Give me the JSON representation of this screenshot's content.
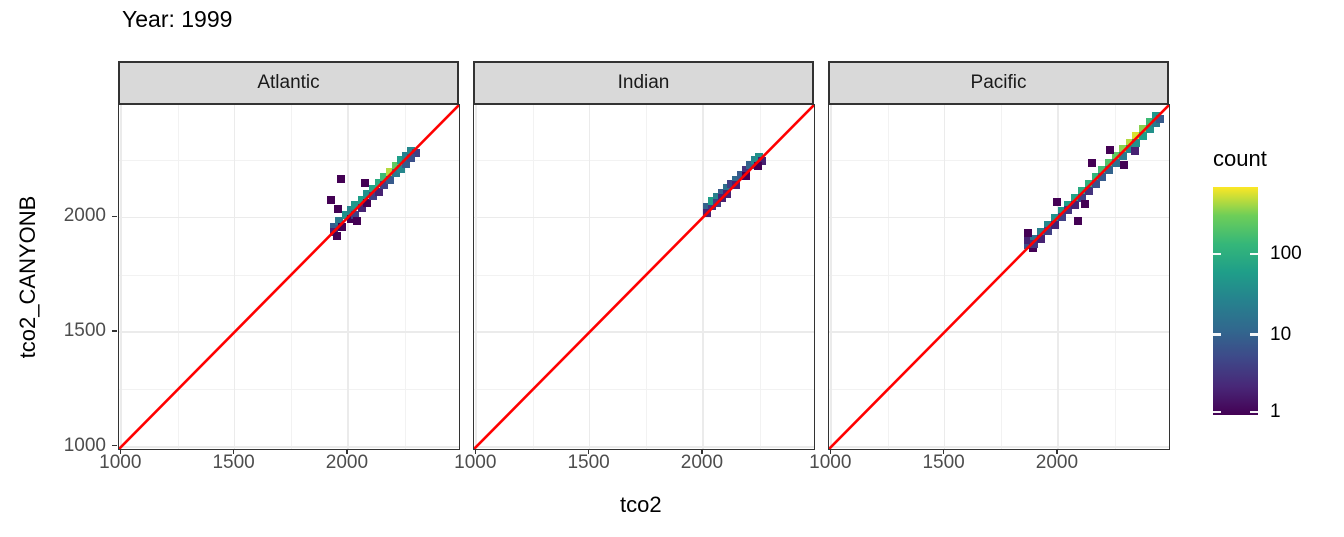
{
  "title": "Year: 1999",
  "colors": {
    "reference_line": "#FF0000",
    "strip_background": "#d9d9d9",
    "panel_border": "#333333",
    "gridline_major": "#ebebeb",
    "gridline_minor": "#f2f2f2",
    "tick_label": "#4d4d4d",
    "viridis_low": "#440154",
    "viridis_high": "#fde725"
  },
  "chart_data": {
    "type": "heatmap",
    "subtype": "geom_bin2d_faceted",
    "title": "Year: 1999",
    "xlabel": "tco2",
    "ylabel": "tco2_CANYONB",
    "facet_labels": [
      "Atlantic",
      "Indian",
      "Pacific"
    ],
    "xlim": [
      990,
      2490
    ],
    "ylim": [
      990,
      2490
    ],
    "x_ticks": [
      1000,
      1500,
      2000
    ],
    "y_ticks": [
      1000,
      1500,
      2000
    ],
    "minor_gridlines": [
      1250,
      1750,
      2250
    ],
    "grid": true,
    "bin_size_units": 35,
    "reference_line": {
      "type": "identity y=x",
      "color": "#FF0000"
    },
    "legend": {
      "title": "count",
      "position": "right",
      "scale": "log10",
      "ticks": [
        1,
        10,
        100
      ],
      "max_count": 680,
      "palette": "viridis"
    },
    "facets": [
      {
        "label": "Atlantic",
        "bins": [
          [
            1940,
            1960,
            8
          ],
          [
            1940,
            1935,
            2
          ],
          [
            1962,
            1985,
            20
          ],
          [
            1975,
            1958,
            1
          ],
          [
            1990,
            2010,
            40
          ],
          [
            2012,
            2030,
            30
          ],
          [
            2012,
            1992,
            1
          ],
          [
            2032,
            2052,
            50
          ],
          [
            2032,
            2012,
            4
          ],
          [
            2060,
            2075,
            60
          ],
          [
            2060,
            2042,
            2
          ],
          [
            2085,
            2100,
            40
          ],
          [
            2085,
            2062,
            1
          ],
          [
            2110,
            2125,
            70
          ],
          [
            2110,
            2092,
            4
          ],
          [
            2135,
            2150,
            90
          ],
          [
            2135,
            2112,
            2
          ],
          [
            2160,
            2175,
            150
          ],
          [
            2160,
            2140,
            4
          ],
          [
            2185,
            2200,
            450
          ],
          [
            2185,
            2162,
            8
          ],
          [
            2210,
            2225,
            250
          ],
          [
            2210,
            2192,
            20
          ],
          [
            2235,
            2248,
            60
          ],
          [
            2235,
            2212,
            30
          ],
          [
            2258,
            2268,
            25
          ],
          [
            2258,
            2232,
            8
          ],
          [
            2280,
            2290,
            30
          ],
          [
            2300,
            2282,
            4
          ],
          [
            2280,
            2258,
            6
          ],
          [
            1925,
            2075,
            1
          ],
          [
            1970,
            2168,
            1
          ],
          [
            2075,
            2148,
            1
          ],
          [
            1958,
            2035,
            1
          ],
          [
            2042,
            1985,
            1
          ],
          [
            1950,
            1918,
            1
          ]
        ]
      },
      {
        "label": "Indian",
        "bins": [
          [
            2020,
            2045,
            10
          ],
          [
            2042,
            2048,
            3
          ],
          [
            2020,
            2020,
            2
          ],
          [
            2040,
            2072,
            60
          ],
          [
            2062,
            2090,
            25
          ],
          [
            2062,
            2062,
            4
          ],
          [
            2085,
            2108,
            8
          ],
          [
            2085,
            2085,
            2
          ],
          [
            2108,
            2126,
            15
          ],
          [
            2108,
            2100,
            2
          ],
          [
            2126,
            2145,
            4
          ],
          [
            2148,
            2165,
            12
          ],
          [
            2148,
            2140,
            2
          ],
          [
            2168,
            2185,
            8
          ],
          [
            2188,
            2205,
            3
          ],
          [
            2188,
            2180,
            1
          ],
          [
            2208,
            2228,
            10
          ],
          [
            2228,
            2248,
            30
          ],
          [
            2248,
            2262,
            40
          ],
          [
            2262,
            2245,
            2
          ],
          [
            2245,
            2222,
            1
          ]
        ]
      },
      {
        "label": "Pacific",
        "bins": [
          [
            1868,
            1878,
            6
          ],
          [
            1868,
            1900,
            2
          ],
          [
            1888,
            1868,
            1
          ],
          [
            1896,
            1906,
            15
          ],
          [
            1896,
            1882,
            3
          ],
          [
            1926,
            1936,
            25
          ],
          [
            1926,
            1906,
            2
          ],
          [
            1956,
            1966,
            30
          ],
          [
            1956,
            1940,
            4
          ],
          [
            1986,
            1996,
            40
          ],
          [
            1986,
            1966,
            2
          ],
          [
            2016,
            2026,
            50
          ],
          [
            2016,
            2000,
            4
          ],
          [
            2046,
            2056,
            60
          ],
          [
            2046,
            2030,
            3
          ],
          [
            2076,
            2086,
            70
          ],
          [
            2076,
            2056,
            2
          ],
          [
            2106,
            2116,
            90
          ],
          [
            2106,
            2086,
            4
          ],
          [
            2136,
            2146,
            110
          ],
          [
            2136,
            2116,
            3
          ],
          [
            2166,
            2176,
            130
          ],
          [
            2166,
            2146,
            6
          ],
          [
            2196,
            2206,
            160
          ],
          [
            2196,
            2176,
            8
          ],
          [
            2226,
            2236,
            200
          ],
          [
            2226,
            2206,
            10
          ],
          [
            2256,
            2266,
            250
          ],
          [
            2256,
            2236,
            15
          ],
          [
            2286,
            2296,
            350
          ],
          [
            2286,
            2266,
            20
          ],
          [
            2316,
            2326,
            450
          ],
          [
            2316,
            2296,
            30
          ],
          [
            2346,
            2356,
            550
          ],
          [
            2346,
            2326,
            40
          ],
          [
            2376,
            2386,
            350
          ],
          [
            2376,
            2356,
            60
          ],
          [
            2406,
            2416,
            150
          ],
          [
            2406,
            2386,
            40
          ],
          [
            2432,
            2442,
            50
          ],
          [
            2432,
            2412,
            20
          ],
          [
            2452,
            2428,
            8
          ],
          [
            2150,
            2235,
            1
          ],
          [
            2090,
            1985,
            1
          ],
          [
            1995,
            2065,
            1
          ],
          [
            2120,
            2060,
            1
          ],
          [
            2290,
            2230,
            1
          ],
          [
            2340,
            2290,
            2
          ],
          [
            2230,
            2292,
            1
          ],
          [
            1868,
            1930,
            1
          ]
        ]
      }
    ]
  }
}
